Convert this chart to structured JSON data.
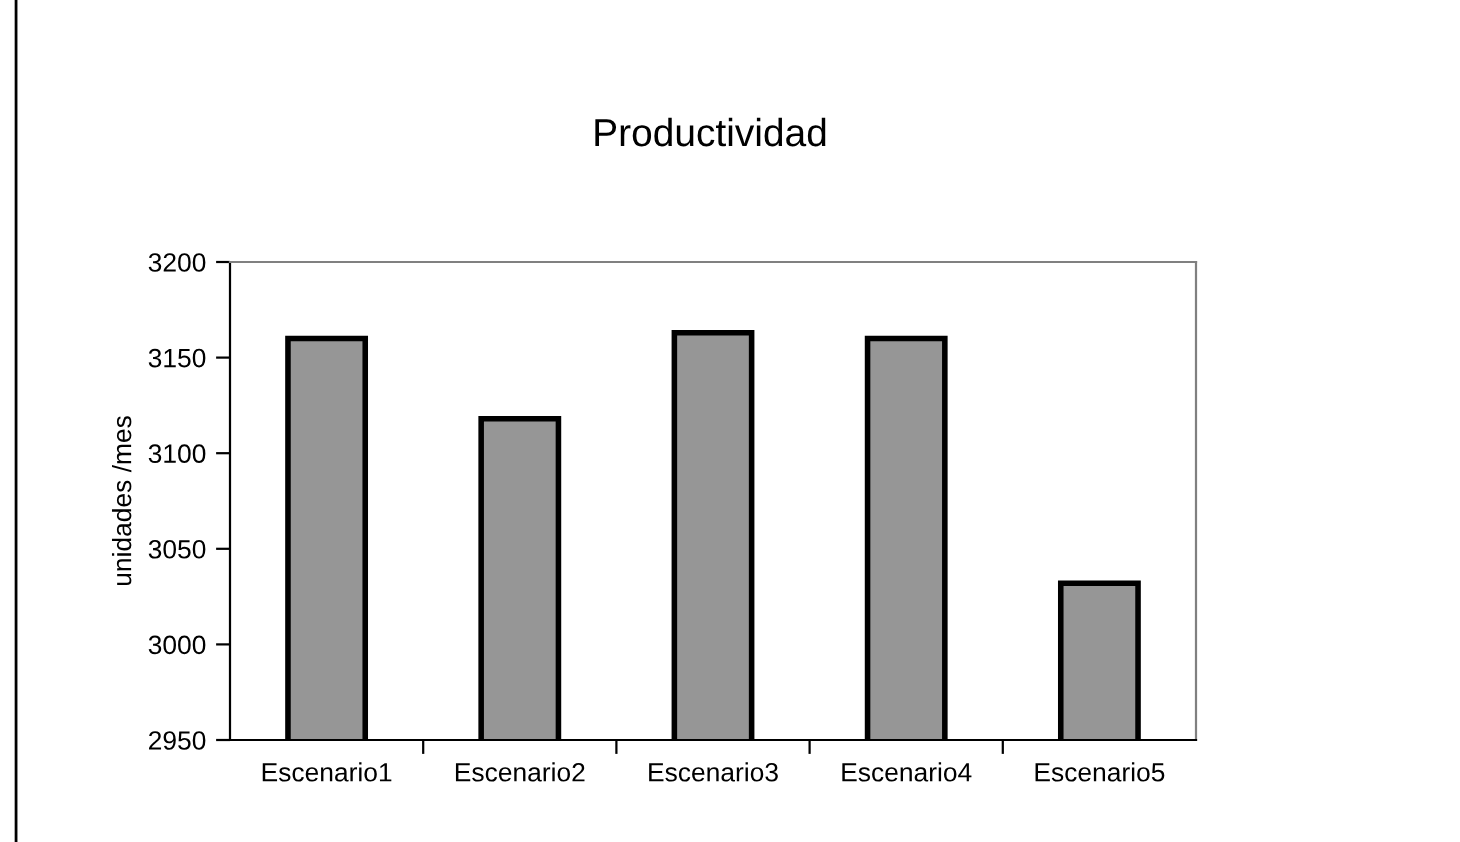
{
  "chart_data": {
    "type": "bar",
    "title": "Productividad",
    "ylabel": "unidades /mes",
    "categories": [
      "Escenario1",
      "Escenario2",
      "Escenario3",
      "Escenario4",
      "Escenario5"
    ],
    "values": [
      3160,
      3118,
      3163,
      3160,
      3032
    ],
    "color": "#969696",
    "ylim": [
      2950,
      3200
    ],
    "yticks": [
      2950,
      3000,
      3050,
      3100,
      3150,
      3200
    ],
    "grid": false
  }
}
